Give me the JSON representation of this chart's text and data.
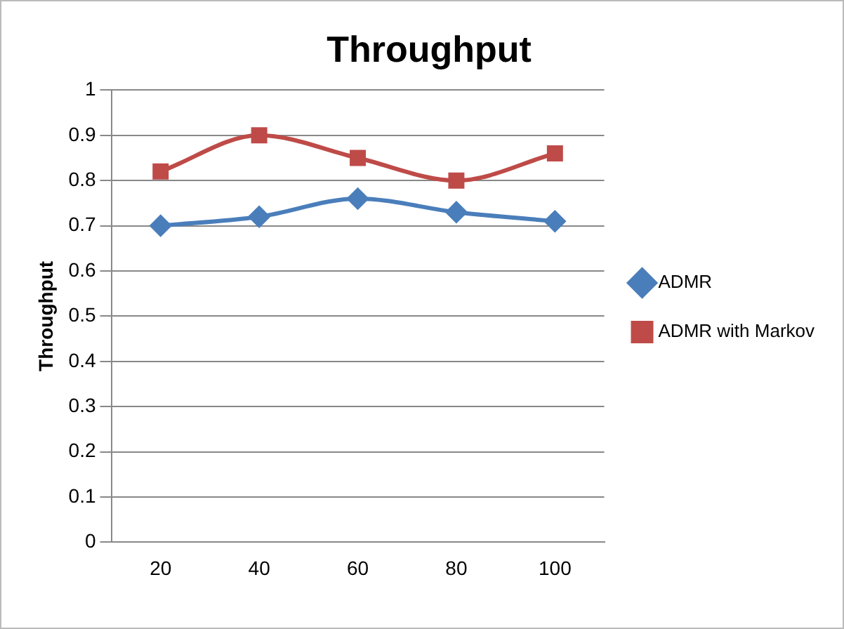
{
  "chart_data": {
    "type": "line",
    "title": "Throughput",
    "ylabel": "Throughput",
    "categories": [
      "20",
      "40",
      "60",
      "80",
      "100"
    ],
    "series": [
      {
        "name": "ADMR",
        "color": "#4a7ebb",
        "marker": "diamond",
        "values": [
          0.7,
          0.72,
          0.76,
          0.73,
          0.71
        ]
      },
      {
        "name": "ADMR with Markov",
        "color": "#be4b48",
        "marker": "square",
        "values": [
          0.82,
          0.9,
          0.85,
          0.8,
          0.86
        ]
      }
    ],
    "ylim": [
      0,
      1
    ],
    "yticks": [
      0,
      0.1,
      0.2,
      0.3,
      0.4,
      0.5,
      0.6,
      0.7,
      0.8,
      0.9,
      1
    ],
    "grid": "y",
    "legend": "right"
  }
}
